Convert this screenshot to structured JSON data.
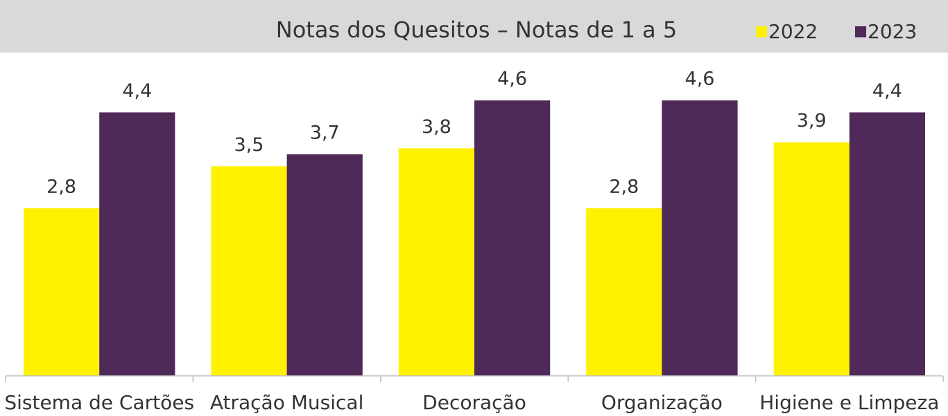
{
  "chart_data": {
    "type": "bar",
    "title": "Notas dos Quesitos – Notas de 1 a 5",
    "categories": [
      "Sistema de Cartões",
      "Atração Musical",
      "Decoração",
      "Organização",
      "Higiene e Limpeza"
    ],
    "series": [
      {
        "name": "2022",
        "color": "#fff200",
        "values": [
          2.8,
          3.5,
          3.8,
          2.8,
          3.9
        ],
        "value_labels": [
          "2,8",
          "3,5",
          "3,8",
          "2,8",
          "3,9"
        ]
      },
      {
        "name": "2023",
        "color": "#4f2957",
        "values": [
          4.4,
          3.7,
          4.6,
          4.6,
          4.4
        ],
        "value_labels": [
          "4,4",
          "3,7",
          "4,6",
          "4,6",
          "4,4"
        ]
      }
    ],
    "ylim": [
      0,
      5
    ],
    "legend": "top-right"
  }
}
